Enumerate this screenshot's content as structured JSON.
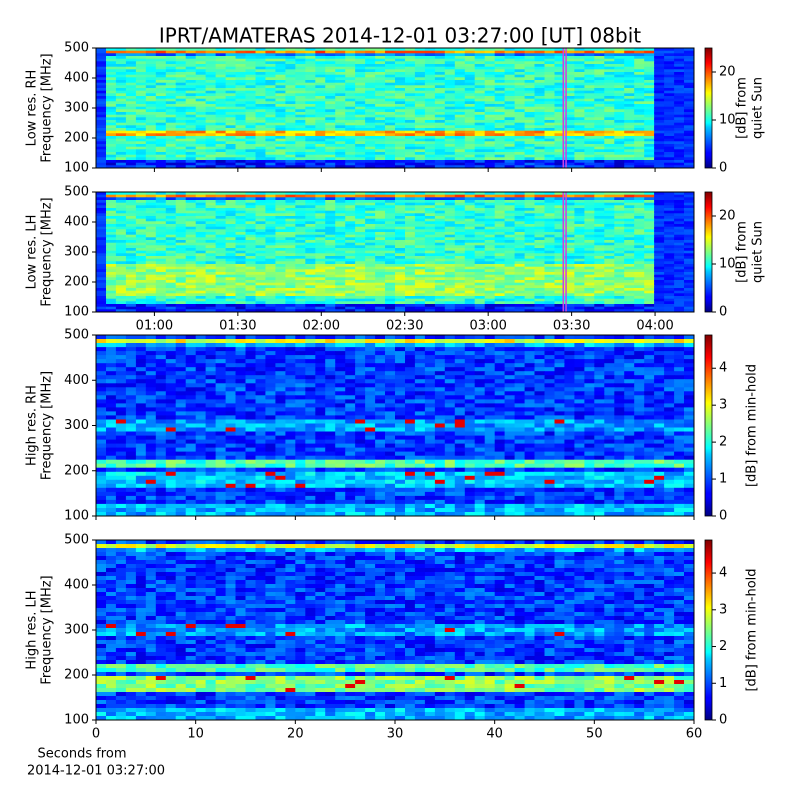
{
  "title": "IPRT/AMATERAS 2014-12-01 03:27:00 [UT]   08bit",
  "xlabel": [
    "Seconds from",
    "2014-12-01 03:27:00"
  ],
  "chart_data": [
    {
      "type": "heatmap",
      "ylabel": [
        "Low res. RH",
        "Frequency [MHz]"
      ],
      "ylim": [
        100,
        500
      ],
      "yticks": [
        100,
        200,
        300,
        400,
        500
      ],
      "xlim": [
        "00:39",
        "04:14"
      ],
      "clim": [
        0,
        25
      ],
      "cticks": [
        0,
        10,
        20
      ],
      "colorbar_label": [
        "[dB] from",
        "quiet Sun"
      ],
      "highlight": {
        "x": [
          "03:27",
          "03:28"
        ],
        "color": "#d040e0"
      }
    },
    {
      "type": "heatmap",
      "ylabel": [
        "Low res. LH",
        "Frequency [MHz]"
      ],
      "ylim": [
        100,
        500
      ],
      "yticks": [
        100,
        200,
        300,
        400,
        500
      ],
      "xlim": [
        "00:39",
        "04:14"
      ],
      "xticks": [
        "01:00",
        "01:30",
        "02:00",
        "02:30",
        "03:00",
        "03:30",
        "04:00"
      ],
      "clim": [
        0,
        25
      ],
      "cticks": [
        0,
        10,
        20
      ],
      "colorbar_label": [
        "[dB] from",
        "quiet Sun"
      ],
      "highlight": {
        "x": [
          "03:27",
          "03:28"
        ],
        "color": "#d040e0"
      }
    },
    {
      "type": "heatmap",
      "ylabel": [
        "High res. RH",
        "Frequency [MHz]"
      ],
      "ylim": [
        100,
        500
      ],
      "yticks": [
        100,
        200,
        300,
        400,
        500
      ],
      "xlim": [
        0,
        60
      ],
      "clim": [
        0,
        4.9
      ],
      "cticks": [
        0,
        1,
        2,
        3,
        4
      ],
      "colorbar_label": [
        "[dB] from min-hold"
      ]
    },
    {
      "type": "heatmap",
      "ylabel": [
        "High res. LH",
        "Frequency [MHz]"
      ],
      "ylim": [
        100,
        500
      ],
      "yticks": [
        100,
        200,
        300,
        400,
        500
      ],
      "xlim": [
        0,
        60
      ],
      "xticks": [
        0,
        10,
        20,
        30,
        40,
        50,
        60
      ],
      "clim": [
        0,
        4.9
      ],
      "cticks": [
        0,
        1,
        2,
        3,
        4
      ],
      "colorbar_label": [
        "[dB] from min-hold"
      ]
    }
  ]
}
